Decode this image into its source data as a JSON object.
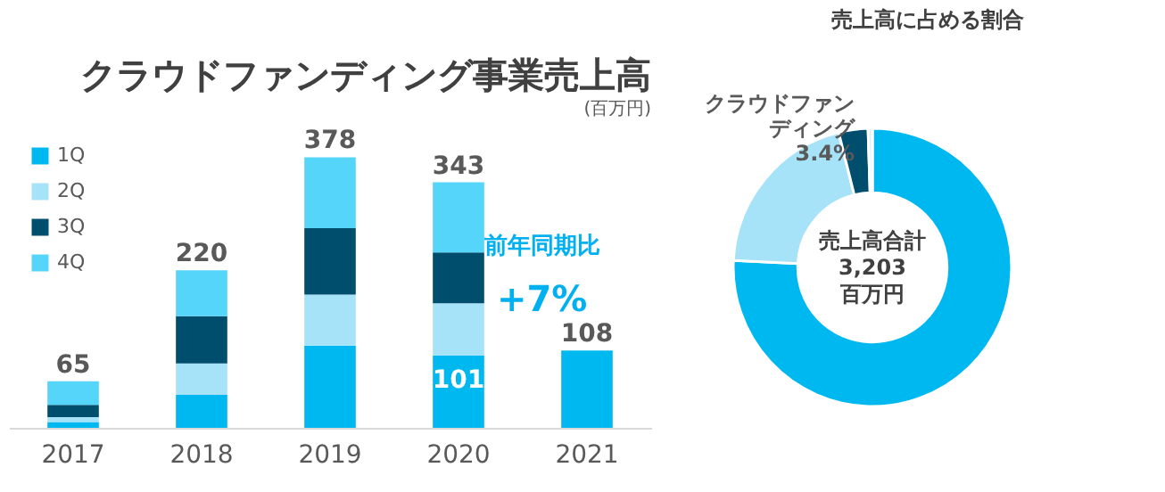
{
  "chart_data": [
    {
      "type": "bar",
      "title": "クラウドファンディング事業売上高",
      "subtitle": "(百万円)",
      "categories": [
        "2017",
        "2018",
        "2019",
        "2020",
        "2021"
      ],
      "stacked": true,
      "legend": "top left",
      "series": [
        {
          "name": "1Q",
          "color": "#00b8f0",
          "values": [
            8,
            46,
            115,
            101,
            108
          ],
          "value_labels": [
            null,
            null,
            null,
            "101",
            null
          ]
        },
        {
          "name": "2Q",
          "color": "#a6e3f9",
          "values": [
            7,
            44,
            71,
            73,
            null
          ]
        },
        {
          "name": "3Q",
          "color": "#004e6e",
          "values": [
            17,
            66,
            93,
            71,
            null
          ]
        },
        {
          "name": "4Q",
          "color": "#55d5fa",
          "values": [
            33,
            64,
            99,
            98,
            null
          ]
        }
      ],
      "totals": [
        "65",
        "220",
        "378",
        "343",
        "108"
      ],
      "annotations": [
        "前年同期比",
        "+7%"
      ]
    },
    {
      "type": "donut",
      "title": "売上高に占める割合",
      "categories": [
        null,
        null,
        "クラウドファンディング",
        null
      ],
      "values": [
        75.8,
        20.3,
        3.4,
        0.5
      ],
      "value_labels": [
        null,
        null,
        "3.4%",
        null
      ],
      "colors": [
        "#00b8f0",
        "#a6e3f9",
        "#004e6e",
        "#d6f1fb"
      ],
      "annotations": [
        "売上高合計",
        "3,203",
        "百万円"
      ]
    }
  ]
}
